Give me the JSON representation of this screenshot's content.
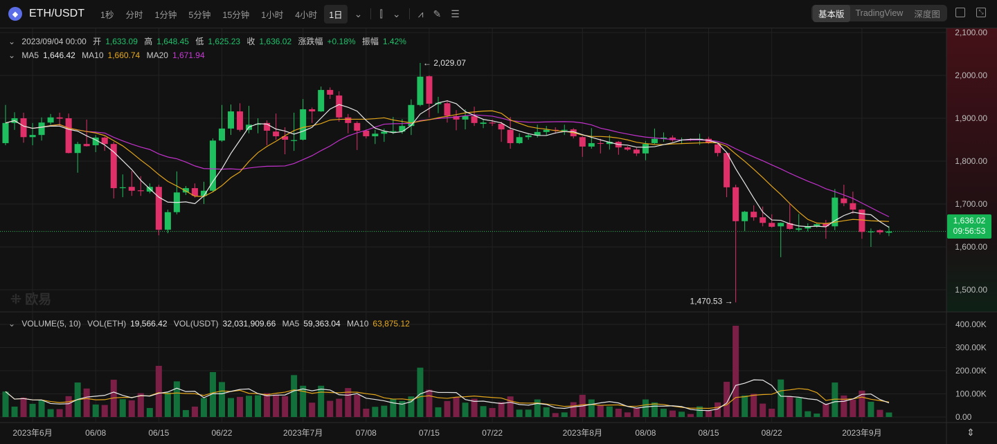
{
  "toolbar": {
    "pair": "ETH/USDT",
    "timeframes": [
      "1秒",
      "分时",
      "1分钟",
      "5分钟",
      "15分钟",
      "1小时",
      "4小时",
      "1日"
    ],
    "active_timeframe": "1日",
    "views": [
      "基本版",
      "TradingView",
      "深度图"
    ],
    "active_view": "基本版"
  },
  "info": {
    "date": "2023/09/04 00:00",
    "open_label": "开",
    "open": "1,633.09",
    "high_label": "高",
    "high": "1,648.45",
    "low_label": "低",
    "low": "1,625.23",
    "close_label": "收",
    "close": "1,636.02",
    "change_label": "涨跌幅",
    "change": "+0.18%",
    "amp_label": "振幅",
    "amp": "1.42%"
  },
  "ma": {
    "ma5_label": "MA5",
    "ma5": "1,646.42",
    "ma10_label": "MA10",
    "ma10": "1,660.74",
    "ma20_label": "MA20",
    "ma20": "1,671.94"
  },
  "volume_info": {
    "title": "VOLUME(5, 10)",
    "eth_label": "VOL(ETH)",
    "eth": "19,566.42",
    "usdt_label": "VOL(USDT)",
    "usdt": "32,031,909.66",
    "ma5_label": "MA5",
    "ma5": "59,363.04",
    "ma10_label": "MA10",
    "ma10": "63,875.12"
  },
  "price_tag": {
    "price": "1,636.02",
    "countdown": "09:56:53"
  },
  "watermark": "欧易",
  "colors": {
    "up": "#1fbf5f",
    "down": "#e0306a",
    "vol_up": "#12703a",
    "vol_down": "#7c1f46",
    "ma5": "#e8e8e8",
    "ma10": "#e3a51a",
    "ma20": "#c232cc"
  },
  "chart_data": {
    "type": "candlestick",
    "price_ticks": [
      "2,100.00",
      "2,000.00",
      "1,900.00",
      "1,800.00",
      "1,700.00",
      "1,600.00",
      "1,500.00"
    ],
    "price_tick_values": [
      2100,
      2000,
      1900,
      1800,
      1700,
      1600,
      1500
    ],
    "volume_ticks": [
      "400.00K",
      "300.00K",
      "200.00K",
      "100.00K",
      "0.00"
    ],
    "volume_tick_values": [
      400000,
      300000,
      200000,
      100000,
      0
    ],
    "x_labels": [
      {
        "label": "2023年6月",
        "date": "2023-06-01"
      },
      {
        "label": "06/08",
        "date": "2023-06-08"
      },
      {
        "label": "06/15",
        "date": "2023-06-15"
      },
      {
        "label": "06/22",
        "date": "2023-06-22"
      },
      {
        "label": "2023年7月",
        "date": "2023-07-01"
      },
      {
        "label": "07/08",
        "date": "2023-07-08"
      },
      {
        "label": "07/15",
        "date": "2023-07-15"
      },
      {
        "label": "07/22",
        "date": "2023-07-22"
      },
      {
        "label": "2023年8月",
        "date": "2023-08-01"
      },
      {
        "label": "08/08",
        "date": "2023-08-08"
      },
      {
        "label": "08/15",
        "date": "2023-08-15"
      },
      {
        "label": "08/22",
        "date": "2023-08-22"
      },
      {
        "label": "2023年9月",
        "date": "2023-09-01"
      }
    ],
    "high_marker": "2,029.07",
    "low_marker": "1,470.53",
    "last_price": 1636.02,
    "moving_averages": [
      5,
      10,
      20
    ],
    "volume_moving_averages": [
      5,
      10
    ],
    "dates": [
      "2023-05-29",
      "2023-05-30",
      "2023-05-31",
      "2023-06-01",
      "2023-06-02",
      "2023-06-03",
      "2023-06-04",
      "2023-06-05",
      "2023-06-06",
      "2023-06-07",
      "2023-06-08",
      "2023-06-09",
      "2023-06-10",
      "2023-06-11",
      "2023-06-12",
      "2023-06-13",
      "2023-06-14",
      "2023-06-15",
      "2023-06-16",
      "2023-06-17",
      "2023-06-18",
      "2023-06-19",
      "2023-06-20",
      "2023-06-21",
      "2023-06-22",
      "2023-06-23",
      "2023-06-24",
      "2023-06-25",
      "2023-06-26",
      "2023-06-27",
      "2023-06-28",
      "2023-06-29",
      "2023-06-30",
      "2023-07-01",
      "2023-07-02",
      "2023-07-03",
      "2023-07-04",
      "2023-07-05",
      "2023-07-06",
      "2023-07-07",
      "2023-07-08",
      "2023-07-09",
      "2023-07-10",
      "2023-07-11",
      "2023-07-12",
      "2023-07-13",
      "2023-07-14",
      "2023-07-15",
      "2023-07-16",
      "2023-07-17",
      "2023-07-18",
      "2023-07-19",
      "2023-07-20",
      "2023-07-21",
      "2023-07-22",
      "2023-07-23",
      "2023-07-24",
      "2023-07-25",
      "2023-07-26",
      "2023-07-27",
      "2023-07-28",
      "2023-07-29",
      "2023-07-30",
      "2023-07-31",
      "2023-08-01",
      "2023-08-02",
      "2023-08-03",
      "2023-08-04",
      "2023-08-05",
      "2023-08-06",
      "2023-08-07",
      "2023-08-08",
      "2023-08-09",
      "2023-08-10",
      "2023-08-11",
      "2023-08-12",
      "2023-08-13",
      "2023-08-14",
      "2023-08-15",
      "2023-08-16",
      "2023-08-17",
      "2023-08-18",
      "2023-08-19",
      "2023-08-20",
      "2023-08-21",
      "2023-08-22",
      "2023-08-23",
      "2023-08-24",
      "2023-08-25",
      "2023-08-26",
      "2023-08-27",
      "2023-08-28",
      "2023-08-29",
      "2023-08-30",
      "2023-08-31",
      "2023-09-01",
      "2023-09-02",
      "2023-09-03",
      "2023-09-04"
    ],
    "ohlcv": [
      [
        1842,
        1931,
        1837,
        1889,
        110000
      ],
      [
        1889,
        1914,
        1873,
        1900,
        45000
      ],
      [
        1900,
        1913,
        1843,
        1856,
        84000
      ],
      [
        1856,
        1889,
        1837,
        1861,
        57000
      ],
      [
        1861,
        1902,
        1848,
        1890,
        72000
      ],
      [
        1890,
        1910,
        1885,
        1902,
        34000
      ],
      [
        1902,
        1913,
        1882,
        1899,
        34000
      ],
      [
        1900,
        1911,
        1818,
        1819,
        90000
      ],
      [
        1819,
        1845,
        1773,
        1840,
        149000
      ],
      [
        1840,
        1897,
        1834,
        1835,
        123000
      ],
      [
        1837,
        1861,
        1821,
        1855,
        54000
      ],
      [
        1855,
        1857,
        1824,
        1840,
        52000
      ],
      [
        1840,
        1845,
        1713,
        1737,
        161000
      ],
      [
        1737,
        1769,
        1716,
        1739,
        77000
      ],
      [
        1740,
        1777,
        1719,
        1731,
        72000
      ],
      [
        1732,
        1765,
        1719,
        1730,
        103000
      ],
      [
        1729,
        1748,
        1725,
        1740,
        39000
      ],
      [
        1740,
        1745,
        1627,
        1640,
        221000
      ],
      [
        1640,
        1687,
        1632,
        1681,
        106000
      ],
      [
        1681,
        1776,
        1676,
        1727,
        154000
      ],
      [
        1727,
        1742,
        1721,
        1737,
        30000
      ],
      [
        1737,
        1748,
        1715,
        1719,
        45000
      ],
      [
        1719,
        1752,
        1700,
        1731,
        82000
      ],
      [
        1731,
        1853,
        1729,
        1848,
        194000
      ],
      [
        1848,
        1931,
        1845,
        1876,
        151000
      ],
      [
        1876,
        1932,
        1861,
        1916,
        82000
      ],
      [
        1916,
        1935,
        1869,
        1873,
        87000
      ],
      [
        1873,
        1929,
        1865,
        1885,
        92000
      ],
      [
        1885,
        1900,
        1865,
        1887,
        94000
      ],
      [
        1889,
        1895,
        1837,
        1871,
        103000
      ],
      [
        1869,
        1911,
        1850,
        1858,
        97000
      ],
      [
        1858,
        1879,
        1816,
        1850,
        90000
      ],
      [
        1847,
        1913,
        1824,
        1849,
        181000
      ],
      [
        1850,
        1945,
        1848,
        1921,
        135000
      ],
      [
        1921,
        1925,
        1889,
        1916,
        62000
      ],
      [
        1916,
        1974,
        1915,
        1966,
        135000
      ],
      [
        1966,
        1972,
        1945,
        1955,
        70000
      ],
      [
        1953,
        1963,
        1892,
        1902,
        79000
      ],
      [
        1902,
        1910,
        1865,
        1889,
        125000
      ],
      [
        1889,
        1893,
        1826,
        1871,
        96000
      ],
      [
        1871,
        1874,
        1853,
        1858,
        36000
      ],
      [
        1858,
        1873,
        1840,
        1864,
        44000
      ],
      [
        1864,
        1876,
        1845,
        1869,
        49000
      ],
      [
        1868,
        1903,
        1863,
        1870,
        79000
      ],
      [
        1869,
        1898,
        1864,
        1882,
        69000
      ],
      [
        1882,
        1944,
        1861,
        1931,
        89000
      ],
      [
        1931,
        2029.07,
        1928,
        1997,
        213000
      ],
      [
        1998,
        2000,
        1902,
        1934,
        118000
      ],
      [
        1933,
        1950,
        1912,
        1936,
        42000
      ],
      [
        1935,
        1942,
        1890,
        1906,
        69000
      ],
      [
        1905,
        1919,
        1872,
        1897,
        86000
      ],
      [
        1897,
        1921,
        1874,
        1905,
        62000
      ],
      [
        1905,
        1927,
        1882,
        1889,
        79000
      ],
      [
        1887,
        1898,
        1877,
        1890,
        47000
      ],
      [
        1890,
        1897,
        1882,
        1888,
        39000
      ],
      [
        1887,
        1892,
        1845,
        1874,
        64000
      ],
      [
        1873,
        1903,
        1829,
        1842,
        89000
      ],
      [
        1842,
        1865,
        1840,
        1856,
        32000
      ],
      [
        1856,
        1865,
        1850,
        1860,
        32000
      ],
      [
        1860,
        1885,
        1855,
        1868,
        76000
      ],
      [
        1868,
        1882,
        1861,
        1873,
        42000
      ],
      [
        1873,
        1879,
        1864,
        1871,
        17000
      ],
      [
        1871,
        1885,
        1861,
        1873,
        20000
      ],
      [
        1874,
        1877,
        1853,
        1858,
        64000
      ],
      [
        1856,
        1858,
        1810,
        1834,
        96000
      ],
      [
        1834,
        1877,
        1829,
        1842,
        76000
      ],
      [
        1842,
        1852,
        1818,
        1841,
        50000
      ],
      [
        1840,
        1861,
        1827,
        1845,
        46000
      ],
      [
        1845,
        1847,
        1815,
        1832,
        36000
      ],
      [
        1832,
        1835,
        1824,
        1827,
        20000
      ],
      [
        1827,
        1831,
        1812,
        1818,
        40000
      ],
      [
        1818,
        1847,
        1802,
        1840,
        76000
      ],
      [
        1842,
        1876,
        1840,
        1852,
        63000
      ],
      [
        1852,
        1867,
        1845,
        1855,
        36000
      ],
      [
        1855,
        1860,
        1845,
        1849,
        28000
      ],
      [
        1849,
        1855,
        1840,
        1850,
        23000
      ],
      [
        1851,
        1853,
        1847,
        1849,
        13000
      ],
      [
        1849,
        1864,
        1838,
        1852,
        46000
      ],
      [
        1852,
        1857,
        1840,
        1842,
        28000
      ],
      [
        1839,
        1841,
        1811,
        1819,
        63000
      ],
      [
        1819,
        1821,
        1716,
        1739,
        152000
      ],
      [
        1739,
        1745,
        1470.53,
        1660,
        394000
      ],
      [
        1660,
        1684,
        1637,
        1682,
        93000
      ],
      [
        1682,
        1697,
        1661,
        1669,
        100000
      ],
      [
        1669,
        1694,
        1648,
        1656,
        58000
      ],
      [
        1656,
        1676,
        1645,
        1647,
        36000
      ],
      [
        1648,
        1657,
        1576,
        1656,
        162000
      ],
      [
        1655,
        1700,
        1640,
        1642,
        88000
      ],
      [
        1640,
        1677,
        1636,
        1643,
        83000
      ],
      [
        1643,
        1655,
        1636,
        1648,
        25000
      ],
      [
        1648,
        1656,
        1645,
        1653,
        15000
      ],
      [
        1655,
        1663,
        1619,
        1648,
        58000
      ],
      [
        1648,
        1735,
        1639,
        1715,
        149000
      ],
      [
        1713,
        1745,
        1695,
        1702,
        93000
      ],
      [
        1702,
        1729,
        1677,
        1687,
        75000
      ],
      [
        1687,
        1688,
        1619,
        1635,
        114000
      ],
      [
        1634,
        1643,
        1600,
        1636,
        66000
      ],
      [
        1639,
        1641,
        1629,
        1634,
        31000
      ],
      [
        1633.09,
        1648.45,
        1625.23,
        1636.02,
        19566.42
      ]
    ]
  }
}
